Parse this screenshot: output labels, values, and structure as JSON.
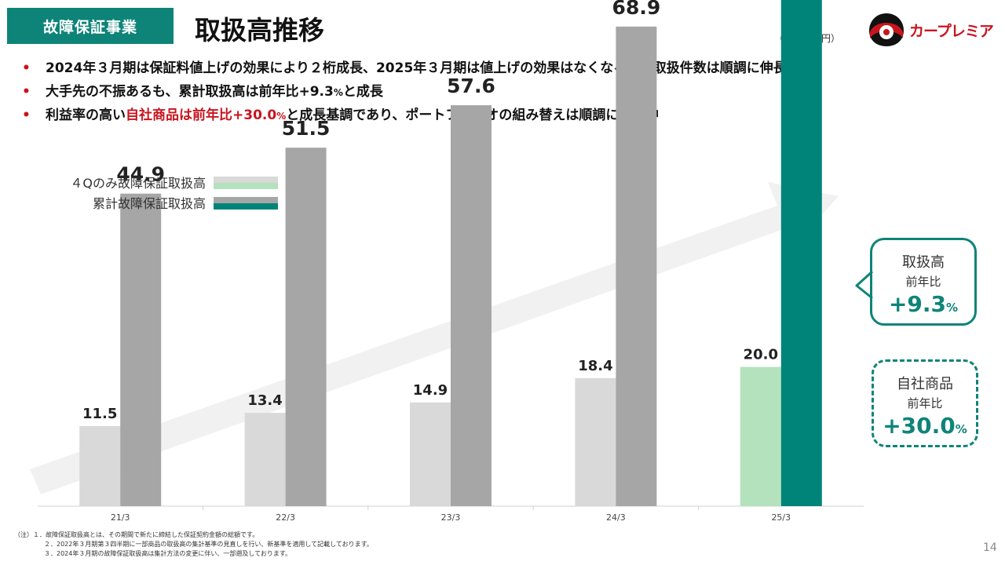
{
  "header": {
    "section_label": "故障保証事業",
    "title": "取扱高推移",
    "unit": "（単位：億円）",
    "logo_text": "カープレミア"
  },
  "bullets": [
    {
      "text": "2024年３月期は保証料値上げの効果により２桁成長、2025年３月期は値上げの効果はなくなるも、取扱件数は順調に伸長"
    },
    {
      "text": "大手先の不振あるも、累計取扱高は前年比+9.3",
      "suffix": "%",
      "tail": "と成長"
    },
    {
      "prefix": "利益率の高い",
      "highlight": "自社商品は前年比+30.0",
      "suffix": "%",
      "tail": "と成長基調であり、ポートフォリオの組み替えは順調に継続中"
    }
  ],
  "chart_data": {
    "type": "bar",
    "categories": [
      "21/3",
      "22/3",
      "23/3",
      "24/3",
      "25/3"
    ],
    "series": [
      {
        "name": "４Qのみ故障保証取扱高",
        "values": [
          11.5,
          13.4,
          14.9,
          18.4,
          20.0
        ],
        "color": "#d9d9d9",
        "highlight_color": "#b3e2bd"
      },
      {
        "name": "累計故障保証取扱高",
        "values": [
          44.9,
          51.5,
          57.6,
          68.9,
          75.3
        ],
        "color": "#a6a6a6",
        "highlight_color": "#00847a"
      }
    ],
    "ylim": [
      0,
      80
    ],
    "grid": false,
    "legend_position": "top-left",
    "highlight_category": "25/3"
  },
  "callouts": [
    {
      "line1": "取扱高",
      "line2": "前年比",
      "value": "+9.3",
      "suffix": "%"
    },
    {
      "line1": "自社商品",
      "line2": "前年比",
      "value": "+30.0",
      "suffix": "%"
    }
  ],
  "notes": [
    "（注）１．故障保証取扱高とは、その期間で新たに締結した保証契約金額の総額です。",
    "２．2022年３月期第３四半期に一部商品の取扱高の集計基準の見直しを行い、新基準を適用して記載しております。",
    "３．2024年３月期の故障保証取扱高は集計方法の変更に伴い、一部遡及しております。"
  ],
  "page_number": "14"
}
